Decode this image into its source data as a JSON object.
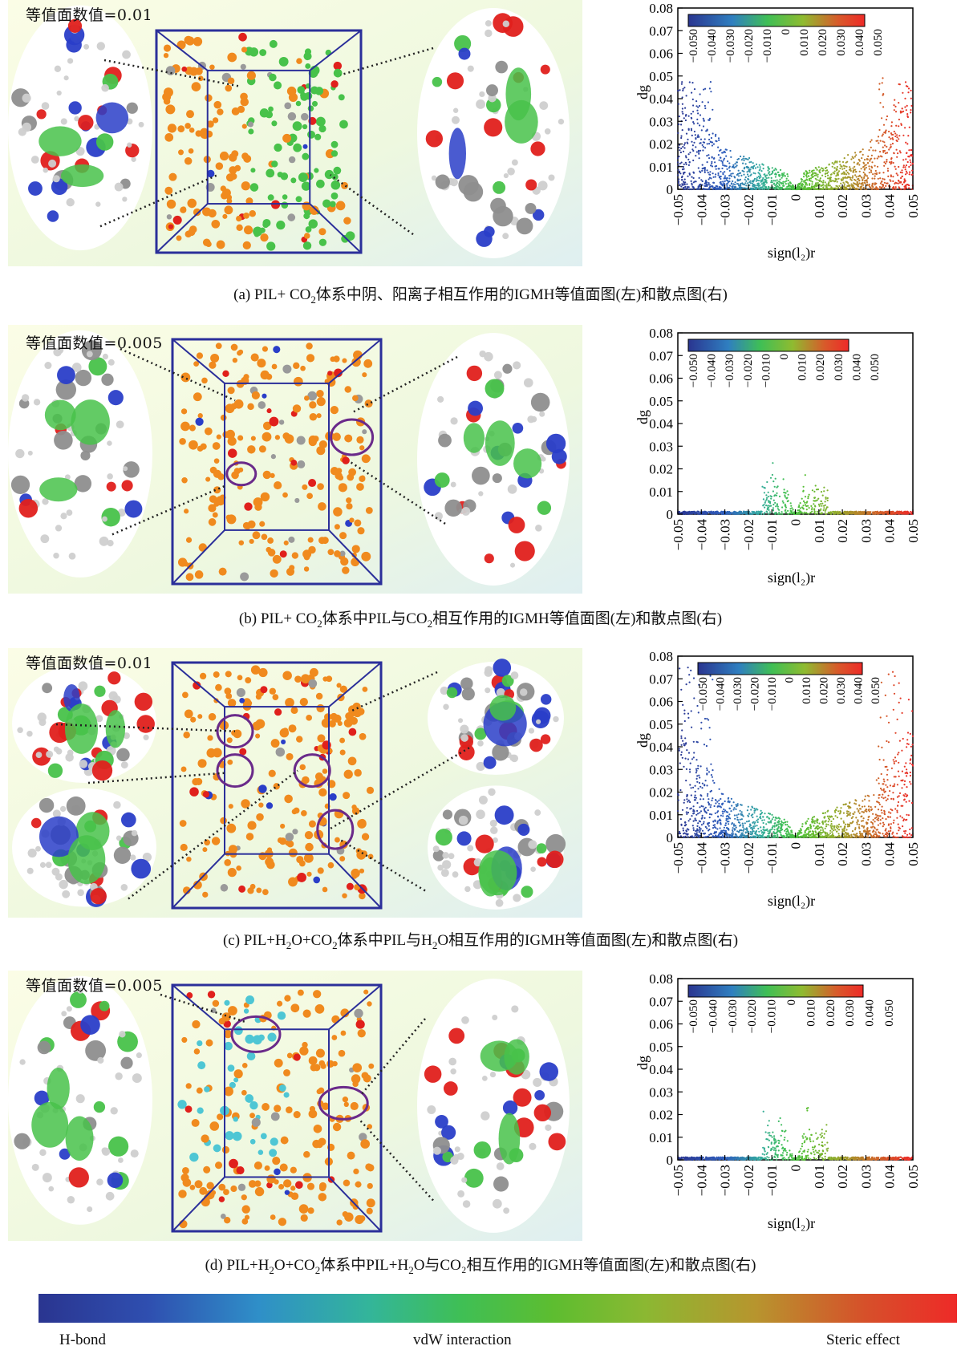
{
  "panels": [
    {
      "id": "a",
      "iso_label": "等值面数值=0.01",
      "caption_pre": "(a) PIL+ CO",
      "caption_sub": "2",
      "caption_mid": "体系中阴、阳离子相互作用的IGMH等值面图(左)和散点图(右)",
      "caption_sub2": "",
      "caption_post": "",
      "caption_sub3": "",
      "caption_end": "",
      "colorbar_max": "0.050",
      "scatter_profile": "wide"
    },
    {
      "id": "b",
      "iso_label": "等值面数值=0.005",
      "caption_pre": "(b) PIL+ CO",
      "caption_sub": "2",
      "caption_mid": "体系中PIL与CO",
      "caption_sub2": "2",
      "caption_post": "相互作用的IGMH等值面图(左)和散点图(右)",
      "caption_sub3": "",
      "caption_end": "",
      "colorbar_max": "0.040",
      "scatter_profile": "narrow"
    },
    {
      "id": "c",
      "iso_label": "等值面数值=0.01",
      "caption_pre": "(c) PIL+H",
      "caption_sub": "2",
      "caption_mid": "O+CO",
      "caption_sub2": "2",
      "caption_post": "体系中PIL与H",
      "caption_sub3": "2",
      "caption_end": "O相互作用的IGMH等值面图(左)和散点图(右)",
      "colorbar_max": "0.050",
      "scatter_profile": "wide"
    },
    {
      "id": "d",
      "iso_label": "等值面数值=0.005",
      "caption_pre": "(d) PIL+H",
      "caption_sub": "2",
      "caption_mid": "O+CO",
      "caption_sub2": "2",
      "caption_post": "体系中PIL+H",
      "caption_sub3": "2",
      "caption_end": "O与CO₂相互作用的IGMH等值面图(左)和散点图(右)",
      "colorbar_max": "0.040",
      "scatter_profile": "narrow"
    }
  ],
  "axes": {
    "ylabel": "dg",
    "xlabel": "sign(l₂)r",
    "yticks": [
      "0",
      "0.01",
      "0.02",
      "0.03",
      "0.04",
      "0.05",
      "0.06",
      "0.07",
      "0.08"
    ],
    "xticks": [
      "−0.05",
      "−0.04",
      "−0.03",
      "−0.02",
      "−0.01",
      "0",
      "0.01",
      "0.02",
      "0.03",
      "0.04",
      "0.05"
    ],
    "colorbar_ticks": [
      "−0.050",
      "−0.040",
      "−0.030",
      "−0.020",
      "−0.010",
      "0",
      "0.010",
      "0.020",
      "0.030",
      "0.040",
      "0.050"
    ]
  },
  "legend": {
    "left": "H-bond",
    "middle": "vdW interaction",
    "right": "Steric effect"
  },
  "chart_data": [
    {
      "type": "scatter",
      "panel": "a",
      "xlabel": "sign(l₂)r",
      "ylabel": "dg",
      "xlim": [
        -0.05,
        0.05
      ],
      "ylim": [
        0,
        0.08
      ],
      "dg_max": 0.05
    },
    {
      "type": "scatter",
      "panel": "b",
      "xlabel": "sign(l₂)r",
      "ylabel": "dg",
      "xlim": [
        -0.05,
        0.05
      ],
      "ylim": [
        0,
        0.08
      ],
      "dg_max": 0.025
    },
    {
      "type": "scatter",
      "panel": "c",
      "xlabel": "sign(l₂)r",
      "ylabel": "dg",
      "xlim": [
        -0.05,
        0.05
      ],
      "ylim": [
        0,
        0.08
      ],
      "dg_max": 0.075
    },
    {
      "type": "scatter",
      "panel": "d",
      "xlabel": "sign(l₂)r",
      "ylabel": "dg",
      "xlim": [
        -0.05,
        0.05
      ],
      "ylim": [
        0,
        0.08
      ],
      "dg_max": 0.025
    }
  ],
  "colors": {
    "box": "#2b2f9a",
    "orange_atom": "#f08a1e",
    "green_atom": "#48c24a",
    "cyan_atom": "#4ec6d4",
    "red_atom": "#e0201c",
    "blue_atom": "#2a3ec8",
    "gray_atom": "#9a9a9a",
    "ring": "#6a2a8a"
  }
}
